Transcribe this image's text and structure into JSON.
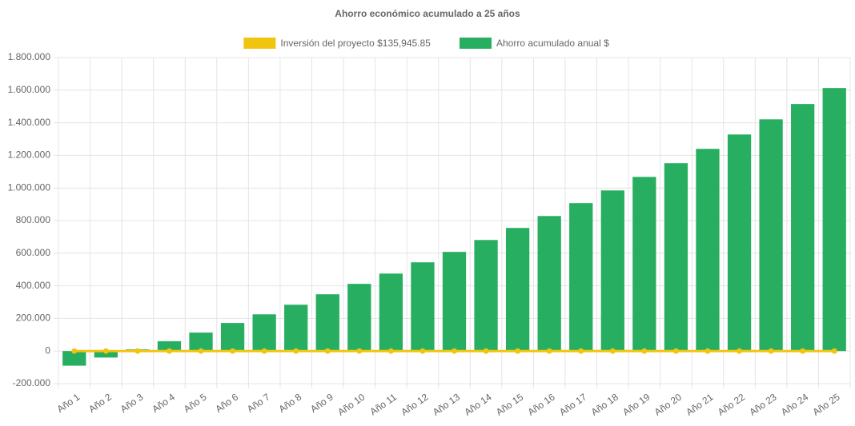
{
  "chart_data": {
    "type": "bar",
    "title": "Ahorro económico acumulado a 25 años",
    "categories": [
      "Año 1",
      "Año 2",
      "Año 3",
      "Año 4",
      "Año 5",
      "Año 6",
      "Año 7",
      "Año 8",
      "Año 9",
      "Año 10",
      "Año 11",
      "Año 12",
      "Año 13",
      "Año 14",
      "Año 15",
      "Año 16",
      "Año 17",
      "Año 18",
      "Año 19",
      "Año 20",
      "Año 21",
      "Año 22",
      "Año 23",
      "Año 24",
      "Año 25"
    ],
    "series": [
      {
        "name": "Inversión del proyecto $135,945.85",
        "type": "line",
        "color": "#f1c40f",
        "values": [
          0,
          0,
          0,
          0,
          0,
          0,
          0,
          0,
          0,
          0,
          0,
          0,
          0,
          0,
          0,
          0,
          0,
          0,
          0,
          0,
          0,
          0,
          0,
          0,
          0
        ]
      },
      {
        "name": "Ahorro acumulado anual $",
        "type": "bar",
        "color": "#27ae60",
        "values": [
          -90000,
          -40000,
          10000,
          60000,
          113000,
          172000,
          225000,
          284000,
          348000,
          412000,
          475000,
          544000,
          608000,
          681000,
          755000,
          828000,
          907000,
          985000,
          1068000,
          1152000,
          1240000,
          1328000,
          1421000,
          1515000,
          1613000
        ]
      }
    ],
    "ylim": [
      -200000,
      1800000
    ],
    "yticks": [
      {
        "value": -200000,
        "label": "-200.000"
      },
      0,
      {
        "value": 200000,
        "label": "200.000"
      },
      {
        "value": 400000,
        "label": "400.000"
      },
      {
        "value": 600000,
        "label": "600.000"
      },
      {
        "value": 800000,
        "label": "800.000"
      },
      {
        "value": 1000000,
        "label": "1.000.000"
      },
      {
        "value": 1200000,
        "label": "1.200.000"
      },
      {
        "value": 1400000,
        "label": "1.400.000"
      },
      {
        "value": 1600000,
        "label": "1.600.000"
      },
      {
        "value": 1800000,
        "label": "1.800.000"
      }
    ],
    "grid": true,
    "legend": "top"
  }
}
